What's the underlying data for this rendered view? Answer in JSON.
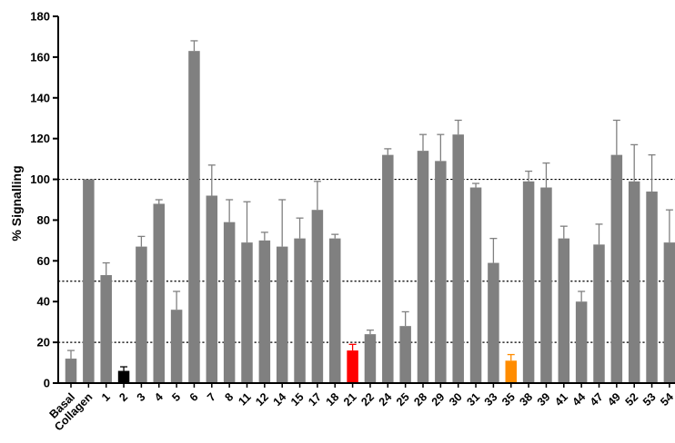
{
  "chart_data": {
    "type": "bar",
    "title": "",
    "xlabel": "",
    "ylabel": "% Signalling",
    "ylim": [
      0,
      180
    ],
    "yticks": [
      0,
      20,
      40,
      60,
      80,
      100,
      120,
      140,
      160,
      180
    ],
    "reference_lines": [
      20,
      50,
      100
    ],
    "grid": false,
    "legend": "none",
    "colors": {
      "default": "#808080",
      "highlight_black": "#000000",
      "highlight_red": "#ff0000",
      "highlight_orange": "#ff8c00"
    },
    "categories": [
      "Basal",
      "Collagen",
      "1",
      "2",
      "3",
      "4",
      "5",
      "6",
      "7",
      "8",
      "11",
      "12",
      "14",
      "15",
      "17",
      "18",
      "21",
      "22",
      "24",
      "25",
      "28",
      "29",
      "30",
      "31",
      "33",
      "35",
      "38",
      "39",
      "41",
      "44",
      "47",
      "49",
      "52",
      "53",
      "54"
    ],
    "values": [
      12,
      100,
      53,
      6,
      67,
      88,
      36,
      163,
      92,
      79,
      69,
      70,
      67,
      71,
      85,
      71,
      16,
      24,
      112,
      28,
      114,
      109,
      122,
      96,
      59,
      11,
      99,
      96,
      71,
      40,
      68,
      112,
      99,
      94,
      69
    ],
    "errors": [
      4,
      0,
      6,
      2,
      5,
      2,
      9,
      5,
      15,
      11,
      20,
      4,
      23,
      10,
      14,
      2,
      3,
      2,
      3,
      7,
      8,
      13,
      7,
      2,
      12,
      3,
      5,
      12,
      6,
      5,
      10,
      17,
      18,
      18,
      16
    ],
    "bar_colors": [
      "default",
      "default",
      "default",
      "highlight_black",
      "default",
      "default",
      "default",
      "default",
      "default",
      "default",
      "default",
      "default",
      "default",
      "default",
      "default",
      "default",
      "highlight_red",
      "default",
      "default",
      "default",
      "default",
      "default",
      "default",
      "default",
      "default",
      "highlight_orange",
      "default",
      "default",
      "default",
      "default",
      "default",
      "default",
      "default",
      "default",
      "default"
    ]
  }
}
